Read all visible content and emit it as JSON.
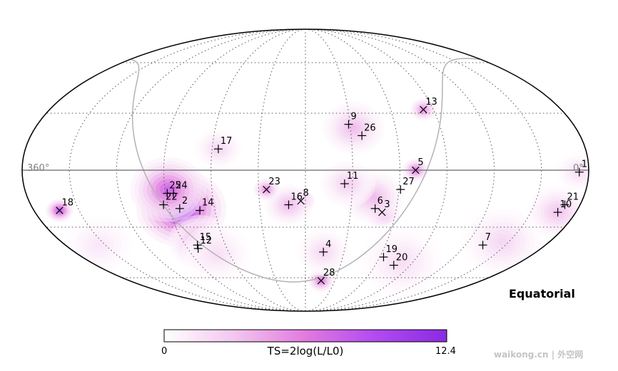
{
  "chart_data": {
    "type": "heatmap",
    "projection": "mollweide",
    "frame_label": "Equatorial",
    "axis_labels": {
      "left": "360°",
      "right": "0°"
    },
    "colorbar": {
      "label": "TS=2log(L/L0)",
      "min": 0,
      "max": 12.4,
      "min_label": "0",
      "max_label": "12.4",
      "colors": [
        "#ffffff",
        "#f3c6ee",
        "#e27ae0",
        "#b14af0",
        "#8a2be2"
      ]
    },
    "galactic_plane": "shown",
    "sources": [
      {
        "id": "1",
        "ra": 6,
        "dec": -1,
        "marker": "plus"
      },
      {
        "id": "2",
        "ra": 263,
        "dec": -20,
        "marker": "plus"
      },
      {
        "id": "3",
        "ra": 129,
        "dec": -22,
        "marker": "x"
      },
      {
        "id": "4",
        "ra": 166,
        "dec": -44,
        "marker": "plus"
      },
      {
        "id": "5",
        "ra": 110,
        "dec": 0,
        "marker": "x"
      },
      {
        "id": "6",
        "ra": 134,
        "dec": -20,
        "marker": "plus"
      },
      {
        "id": "7",
        "ra": 47,
        "dec": -40,
        "marker": "plus"
      },
      {
        "id": "8",
        "ra": 183,
        "dec": -16,
        "marker": "x"
      },
      {
        "id": "9",
        "ra": 151,
        "dec": 24,
        "marker": "plus"
      },
      {
        "id": "10",
        "ra": 12,
        "dec": -22,
        "marker": "plus"
      },
      {
        "id": "11",
        "ra": 155,
        "dec": -7,
        "marker": "plus"
      },
      {
        "id": "12",
        "ra": 262,
        "dec": -42,
        "marker": "plus"
      },
      {
        "id": "13",
        "ra": 97,
        "dec": 32,
        "marker": "x"
      },
      {
        "id": "14",
        "ra": 250,
        "dec": -21,
        "marker": "plus"
      },
      {
        "id": "15",
        "ra": 261,
        "dec": -40,
        "marker": "plus"
      },
      {
        "id": "16",
        "ra": 191,
        "dec": -18,
        "marker": "plus"
      },
      {
        "id": "17",
        "ra": 236,
        "dec": 11,
        "marker": "plus"
      },
      {
        "id": "18",
        "ra": 343,
        "dec": -21,
        "marker": "x"
      },
      {
        "id": "19",
        "ra": 117,
        "dec": -47,
        "marker": "plus"
      },
      {
        "id": "20",
        "ra": 104,
        "dec": -52,
        "marker": "plus"
      },
      {
        "id": "21",
        "ra": 10,
        "dec": -18,
        "marker": "plus"
      },
      {
        "id": "22",
        "ra": 273,
        "dec": -18,
        "marker": "plus"
      },
      {
        "id": "23",
        "ra": 205,
        "dec": -10,
        "marker": "x"
      },
      {
        "id": "24",
        "ra": 265,
        "dec": -12,
        "marker": "plus"
      },
      {
        "id": "25",
        "ra": 269,
        "dec": -12,
        "marker": "plus"
      },
      {
        "id": "26",
        "ra": 143,
        "dec": 18,
        "marker": "plus"
      },
      {
        "id": "27",
        "ra": 119,
        "dec": -10,
        "marker": "plus"
      },
      {
        "id": "28",
        "ra": 164,
        "dec": -62,
        "marker": "x"
      }
    ],
    "hotspots": [
      {
        "ra": 262,
        "dec": -20,
        "ts": 12.4,
        "spread": 13
      },
      {
        "ra": 268,
        "dec": -10,
        "ts": 8.5,
        "spread": 11
      },
      {
        "ra": 258,
        "dec": -38,
        "ts": 5.0,
        "spread": 9
      },
      {
        "ra": 343,
        "dec": -21,
        "ts": 9.5,
        "spread": 4
      },
      {
        "ra": 183,
        "dec": -16,
        "ts": 10.0,
        "spread": 4
      },
      {
        "ra": 191,
        "dec": -18,
        "ts": 4.0,
        "spread": 7
      },
      {
        "ra": 205,
        "dec": -10,
        "ts": 6.0,
        "spread": 4
      },
      {
        "ra": 129,
        "dec": -22,
        "ts": 9.0,
        "spread": 5
      },
      {
        "ra": 136,
        "dec": -14,
        "ts": 4.0,
        "spread": 9
      },
      {
        "ra": 153,
        "dec": -7,
        "ts": 3.0,
        "spread": 8
      },
      {
        "ra": 148,
        "dec": 22,
        "ts": 4.0,
        "spread": 9
      },
      {
        "ra": 110,
        "dec": 0,
        "ts": 7.0,
        "spread": 4
      },
      {
        "ra": 97,
        "dec": 32,
        "ts": 6.0,
        "spread": 4
      },
      {
        "ra": 236,
        "dec": 11,
        "ts": 2.5,
        "spread": 7
      },
      {
        "ra": 164,
        "dec": -62,
        "ts": 7.0,
        "spread": 4
      },
      {
        "ra": 166,
        "dec": -44,
        "ts": 2.5,
        "spread": 8
      },
      {
        "ra": 6,
        "dec": -1,
        "ts": 2.0,
        "spread": 7
      },
      {
        "ra": 12,
        "dec": -22,
        "ts": 3.5,
        "spread": 9
      },
      {
        "ra": 35,
        "dec": -38,
        "ts": 2.5,
        "spread": 12
      },
      {
        "ra": 100,
        "dec": -50,
        "ts": 2.0,
        "spread": 12
      },
      {
        "ra": 335,
        "dec": -40,
        "ts": 1.5,
        "spread": 10
      },
      {
        "ra": 250,
        "dec": -45,
        "ts": 2.0,
        "spread": 10
      }
    ]
  },
  "watermark": "waikong.cn | 外空网"
}
